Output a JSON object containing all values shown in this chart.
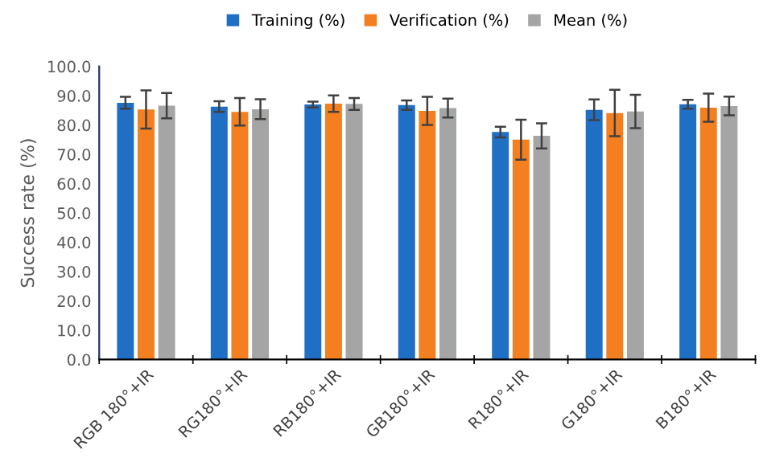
{
  "chart_data": {
    "type": "bar",
    "ylabel": "Success rate (%)",
    "categories": [
      "RGB 180°+IR",
      "RG180°+IR",
      "RB180°+IR",
      "GB180°+IR",
      "R180°+IR",
      "G180°+IR",
      "B180°+IR"
    ],
    "series": [
      {
        "name": "Training (%)",
        "color": "#1f6fc5",
        "values": [
          87.6,
          86.3,
          87.0,
          86.8,
          77.6,
          85.2,
          87.1
        ],
        "errors": [
          2.0,
          1.8,
          1.0,
          1.6,
          1.8,
          3.5,
          1.5
        ]
      },
      {
        "name": "Verification (%)",
        "color": "#f47f20",
        "values": [
          85.3,
          84.5,
          87.3,
          84.8,
          75.0,
          84.1,
          85.9
        ],
        "errors": [
          6.5,
          4.7,
          2.8,
          4.8,
          6.8,
          7.9,
          4.8
        ]
      },
      {
        "name": "Mean (%)",
        "color": "#a5a5a5",
        "values": [
          86.6,
          85.4,
          87.2,
          85.8,
          76.3,
          84.6,
          86.5
        ],
        "errors": [
          4.3,
          3.4,
          2.0,
          3.2,
          4.3,
          5.7,
          3.2
        ]
      }
    ],
    "ylim": [
      0,
      100
    ],
    "yticks": [
      {
        "value": 0,
        "label": "0.0"
      },
      {
        "value": 10,
        "label": "10.0"
      },
      {
        "value": 20,
        "label": "20.0"
      },
      {
        "value": 30,
        "label": "30.0"
      },
      {
        "value": 40,
        "label": "40.0"
      },
      {
        "value": 50,
        "label": "50.0"
      },
      {
        "value": 60,
        "label": "60.0"
      },
      {
        "value": 70,
        "label": "70.0"
      },
      {
        "value": 80,
        "label": "80.0"
      },
      {
        "value": 90,
        "label": "90.0"
      },
      {
        "value": 100,
        "label": "100.0"
      }
    ],
    "grid": false,
    "legend": "top"
  }
}
